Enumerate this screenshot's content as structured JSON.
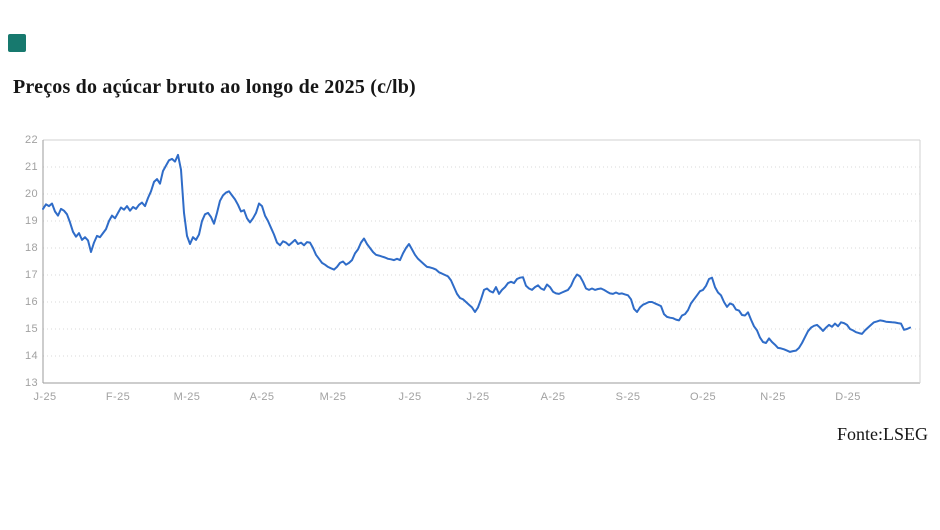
{
  "title": "Preços do açúcar bruto ao longo de 2025 (c/lb)",
  "source_note": "Fonte:LSEG",
  "brand_square_color": "#17796e",
  "axis": {
    "tick_label_color": "#a1a1a1",
    "axis_line_color": "#9b9b9b",
    "grid_line_color": "#d9d9d9",
    "box_line_color": "#d2d2d2"
  },
  "chart_data": {
    "type": "line",
    "title": "Preços do açúcar bruto ao longo de 2025 (c/lb)",
    "xlabel": "",
    "ylabel": "",
    "legend": "none",
    "grid": "horizontal dotted",
    "ylim": [
      13,
      22
    ],
    "line_color": "#2f6cc8",
    "x_tick_labels": [
      "J-25",
      "F-25",
      "M-25",
      "A-25",
      "M-25",
      "J-25",
      "J-25",
      "A-25",
      "S-25",
      "O-25",
      "N-25",
      "D-25"
    ],
    "y_tick_labels": [
      "22",
      "21",
      "20",
      "19",
      "18",
      "17",
      "16",
      "15",
      "14",
      "13"
    ],
    "values": [
      19.45,
      19.62,
      19.55,
      19.65,
      19.35,
      19.2,
      19.45,
      19.38,
      19.25,
      18.95,
      18.6,
      18.42,
      18.55,
      18.3,
      18.4,
      18.28,
      17.85,
      18.2,
      18.45,
      18.4,
      18.55,
      18.7,
      19.0,
      19.2,
      19.1,
      19.3,
      19.5,
      19.42,
      19.55,
      19.38,
      19.52,
      19.45,
      19.6,
      19.68,
      19.55,
      19.85,
      20.1,
      20.45,
      20.55,
      20.38,
      20.85,
      21.05,
      21.25,
      21.3,
      21.2,
      21.45,
      20.9,
      19.3,
      18.45,
      18.15,
      18.4,
      18.3,
      18.5,
      19.0,
      19.25,
      19.3,
      19.15,
      18.9,
      19.3,
      19.75,
      19.95,
      20.05,
      20.1,
      19.95,
      19.8,
      19.6,
      19.35,
      19.4,
      19.1,
      18.95,
      19.1,
      19.3,
      19.65,
      19.55,
      19.2,
      19.0,
      18.75,
      18.5,
      18.2,
      18.1,
      18.25,
      18.2,
      18.1,
      18.2,
      18.3,
      18.15,
      18.2,
      18.1,
      18.22,
      18.2,
      18.0,
      17.75,
      17.6,
      17.45,
      17.38,
      17.3,
      17.25,
      17.2,
      17.3,
      17.45,
      17.5,
      17.38,
      17.45,
      17.55,
      17.8,
      17.95,
      18.2,
      18.35,
      18.15,
      18.0,
      17.85,
      17.75,
      17.72,
      17.68,
      17.65,
      17.6,
      17.58,
      17.55,
      17.6,
      17.55,
      17.8,
      18.0,
      18.15,
      17.95,
      17.75,
      17.6,
      17.5,
      17.4,
      17.3,
      17.28,
      17.25,
      17.2,
      17.1,
      17.05,
      17.0,
      16.95,
      16.8,
      16.55,
      16.3,
      16.15,
      16.1,
      16.0,
      15.9,
      15.8,
      15.63,
      15.8,
      16.1,
      16.45,
      16.5,
      16.4,
      16.35,
      16.55,
      16.3,
      16.45,
      16.55,
      16.7,
      16.75,
      16.7,
      16.85,
      16.9,
      16.92,
      16.6,
      16.5,
      16.45,
      16.55,
      16.62,
      16.5,
      16.45,
      16.65,
      16.55,
      16.38,
      16.32,
      16.3,
      16.35,
      16.4,
      16.45,
      16.6,
      16.85,
      17.02,
      16.95,
      16.75,
      16.5,
      16.45,
      16.5,
      16.45,
      16.48,
      16.5,
      16.45,
      16.38,
      16.32,
      16.3,
      16.35,
      16.3,
      16.32,
      16.28,
      16.25,
      16.1,
      15.75,
      15.63,
      15.8,
      15.9,
      15.95,
      16.0,
      16.0,
      15.95,
      15.9,
      15.85,
      15.55,
      15.45,
      15.42,
      15.4,
      15.35,
      15.32,
      15.5,
      15.55,
      15.7,
      15.95,
      16.1,
      16.25,
      16.4,
      16.45,
      16.6,
      16.85,
      16.9,
      16.55,
      16.35,
      16.25,
      16.0,
      15.82,
      15.95,
      15.9,
      15.72,
      15.68,
      15.52,
      15.5,
      15.62,
      15.35,
      15.1,
      14.95,
      14.68,
      14.52,
      14.48,
      14.65,
      14.52,
      14.42,
      14.3,
      14.28,
      14.25,
      14.2,
      14.15,
      14.18,
      14.2,
      14.3,
      14.48,
      14.7,
      14.92,
      15.05,
      15.12,
      15.15,
      15.05,
      14.93,
      15.05,
      15.15,
      15.08,
      15.2,
      15.1,
      15.25,
      15.22,
      15.15,
      15.0,
      14.95,
      14.88,
      14.85,
      14.82,
      14.95,
      15.05,
      15.15,
      15.25,
      15.28,
      15.32,
      15.3,
      15.27,
      15.26,
      15.25,
      15.24,
      15.22,
      15.2,
      14.97,
      15.0,
      15.05
    ]
  }
}
